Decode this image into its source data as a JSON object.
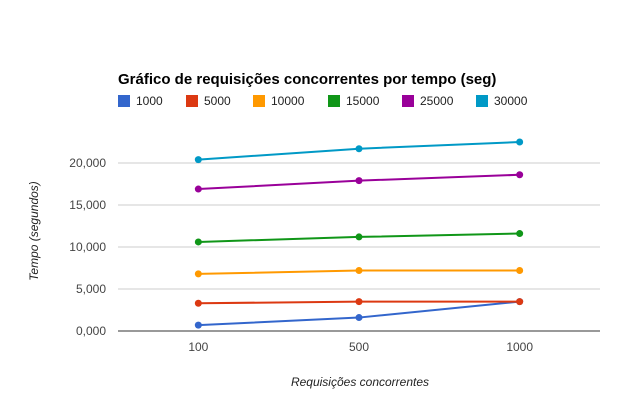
{
  "chart_data": {
    "type": "line",
    "title": "Gráfico de requisições concorrentes por tempo (seg)",
    "xlabel": "Requisições concorrentes",
    "ylabel": "Tempo (segundos)",
    "categories": [
      "100",
      "500",
      "1000"
    ],
    "ylim": [
      0,
      20000
    ],
    "y_ticks": [
      0,
      5000,
      10000,
      15000,
      20000
    ],
    "y_tick_labels": [
      "0,000",
      "5,000",
      "10,000",
      "15,000",
      "20,000"
    ],
    "grid": true,
    "legend_position": "top",
    "series": [
      {
        "name": "1000",
        "color": "#3366cc",
        "values": [
          700,
          1600,
          3500
        ]
      },
      {
        "name": "5000",
        "color": "#dc3912",
        "values": [
          3300,
          3500,
          3500
        ]
      },
      {
        "name": "10000",
        "color": "#ff9900",
        "values": [
          6800,
          7200,
          7200
        ]
      },
      {
        "name": "15000",
        "color": "#109618",
        "values": [
          10600,
          11200,
          11600
        ]
      },
      {
        "name": "25000",
        "color": "#990099",
        "values": [
          16900,
          17900,
          18600
        ]
      },
      {
        "name": "30000",
        "color": "#0099c6",
        "values": [
          20400,
          21700,
          22500
        ]
      }
    ]
  }
}
